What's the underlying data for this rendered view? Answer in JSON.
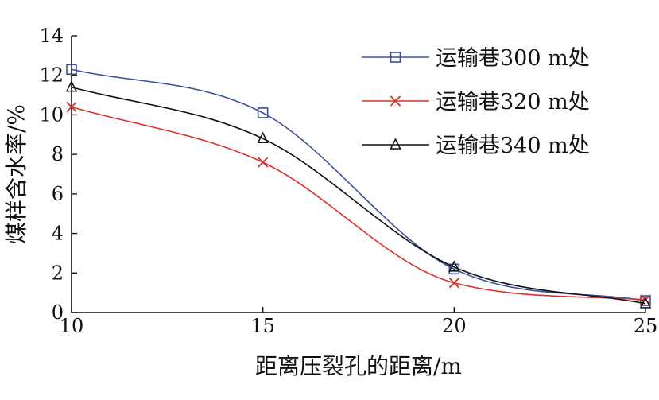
{
  "chart_data": {
    "type": "line",
    "xlabel": "距离压裂孔的距离/m",
    "ylabel": "煤样含水率/%",
    "x": [
      10,
      15,
      20,
      25
    ],
    "xlim": [
      10,
      25
    ],
    "ylim": [
      0,
      14
    ],
    "xticks": [
      "10",
      "15",
      "20",
      "25"
    ],
    "yticks": [
      "0",
      "2",
      "4",
      "6",
      "8",
      "10",
      "12",
      "14"
    ],
    "legend_position": "top-right",
    "grid": false,
    "series": [
      {
        "name": "运输巷300 m处",
        "values": [
          12.3,
          10.1,
          2.2,
          0.6
        ],
        "color": "#3a4f9c",
        "marker": "square"
      },
      {
        "name": "运输巷320 m处",
        "values": [
          10.4,
          7.6,
          1.5,
          0.65
        ],
        "color": "#d8322a",
        "marker": "x"
      },
      {
        "name": "运输巷340 m处",
        "values": [
          11.4,
          8.8,
          2.3,
          0.45
        ],
        "color": "#111111",
        "marker": "triangle"
      }
    ]
  }
}
